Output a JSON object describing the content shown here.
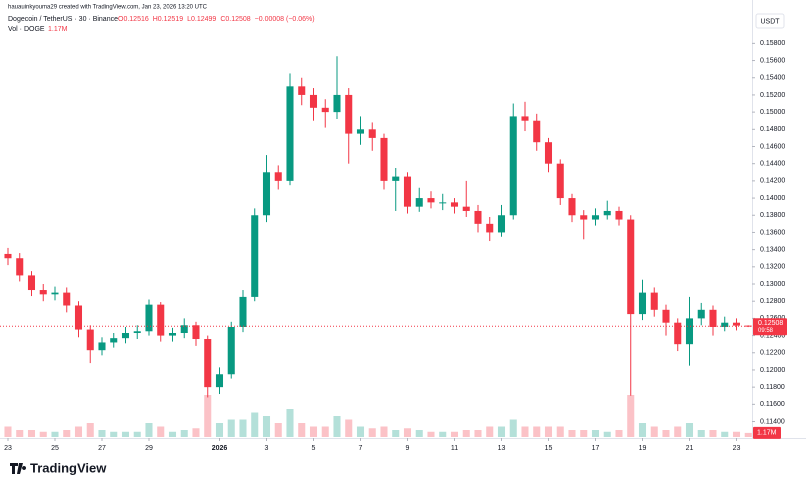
{
  "attribution": "hauauinkyouma29 created with TradingView.com, Jan 23, 2026 13:20 UTC",
  "footer": "TradingView",
  "chart_data": {
    "type": "candlestick",
    "title": "Dogecoin / TetherUS · 30 · Binance",
    "ohlc_legend": [
      "O0.12516",
      "H0.12519",
      "L0.12499",
      "C0.12508",
      "−0.00008 (−0.06%)"
    ],
    "volume_title": "Vol · DOGE",
    "volume_legend": "1.17M",
    "y_unit": "USDT",
    "countdown": "09:58",
    "up_color": "#089981",
    "down_color": "#f23645",
    "x": [
      0,
      0.5,
      1,
      1.5,
      2,
      2.5,
      3,
      3.5,
      4,
      4.5,
      5,
      5.5,
      6,
      6.5,
      7,
      7.5,
      8,
      8.5,
      9,
      9.5,
      10,
      10.5,
      11,
      11.5,
      12,
      12.5,
      13,
      13.5,
      14,
      14.5,
      15,
      15.5,
      16,
      16.5,
      17,
      17.5,
      18,
      18.5,
      19,
      19.5,
      20,
      20.5,
      21,
      21.5,
      22,
      22.5,
      23,
      23.5,
      24,
      24.5,
      25,
      25.5,
      26,
      26.5,
      27,
      27.5,
      28,
      28.5,
      29,
      29.5,
      30,
      30.5,
      31,
      31.5
    ],
    "open": [
      0.1335,
      0.133,
      0.131,
      0.1293,
      0.1288,
      0.129,
      0.1275,
      0.1247,
      0.1223,
      0.1232,
      0.1237,
      0.1243,
      0.1245,
      0.1276,
      0.124,
      0.1243,
      0.1252,
      0.1236,
      0.118,
      0.1195,
      0.125,
      0.1285,
      0.138,
      0.143,
      0.142,
      0.153,
      0.152,
      0.1505,
      0.15,
      0.152,
      0.1475,
      0.148,
      0.147,
      0.142,
      0.1425,
      0.139,
      0.14,
      0.1395,
      0.1395,
      0.139,
      0.1385,
      0.137,
      0.136,
      0.138,
      0.1495,
      0.149,
      0.1465,
      0.144,
      0.14,
      0.138,
      0.1375,
      0.138,
      0.1385,
      0.1375,
      0.1265,
      0.129,
      0.127,
      0.1255,
      0.123,
      0.126,
      0.127,
      0.125,
      0.1255,
      0.12516
    ],
    "high": [
      0.1342,
      0.1336,
      0.1315,
      0.13,
      0.1297,
      0.1296,
      0.128,
      0.1252,
      0.1238,
      0.1243,
      0.125,
      0.1252,
      0.1282,
      0.1279,
      0.1249,
      0.126,
      0.1256,
      0.124,
      0.1203,
      0.1256,
      0.1293,
      0.1388,
      0.145,
      0.1438,
      0.1545,
      0.154,
      0.1528,
      0.1515,
      0.1565,
      0.1528,
      0.1495,
      0.1488,
      0.1475,
      0.1435,
      0.143,
      0.1412,
      0.1408,
      0.1405,
      0.14,
      0.142,
      0.1392,
      0.1378,
      0.1392,
      0.151,
      0.1512,
      0.1498,
      0.147,
      0.1445,
      0.1405,
      0.1386,
      0.1388,
      0.1397,
      0.139,
      0.138,
      0.1305,
      0.1296,
      0.1276,
      0.126,
      0.1285,
      0.1278,
      0.1275,
      0.1262,
      0.126,
      0.12519
    ],
    "low": [
      0.1322,
      0.1303,
      0.1286,
      0.128,
      0.1281,
      0.1267,
      0.1238,
      0.1208,
      0.1217,
      0.1226,
      0.1231,
      0.1236,
      0.124,
      0.1233,
      0.1233,
      0.1237,
      0.1228,
      0.1168,
      0.1172,
      0.119,
      0.1244,
      0.128,
      0.1372,
      0.141,
      0.1415,
      0.1508,
      0.149,
      0.1482,
      0.1492,
      0.144,
      0.1462,
      0.1455,
      0.141,
      0.1385,
      0.1382,
      0.1384,
      0.1388,
      0.1386,
      0.1382,
      0.1378,
      0.136,
      0.135,
      0.1355,
      0.1375,
      0.1478,
      0.1455,
      0.143,
      0.1392,
      0.1372,
      0.1352,
      0.1368,
      0.1375,
      0.1368,
      0.117,
      0.1258,
      0.1262,
      0.124,
      0.1222,
      0.1205,
      0.1252,
      0.124,
      0.1245,
      0.1246,
      0.12499
    ],
    "close": [
      0.133,
      0.131,
      0.1293,
      0.1288,
      0.129,
      0.1275,
      0.1247,
      0.1223,
      0.1232,
      0.1237,
      0.1243,
      0.1245,
      0.1276,
      0.124,
      0.1243,
      0.1252,
      0.1236,
      0.118,
      0.1195,
      0.125,
      0.1285,
      0.138,
      0.143,
      0.142,
      0.153,
      0.152,
      0.1505,
      0.15,
      0.152,
      0.1475,
      0.148,
      0.147,
      0.142,
      0.1425,
      0.139,
      0.14,
      0.1395,
      0.1395,
      0.139,
      0.1385,
      0.137,
      0.136,
      0.138,
      0.1495,
      0.149,
      0.1465,
      0.144,
      0.14,
      0.138,
      0.1375,
      0.138,
      0.1385,
      0.1375,
      0.1265,
      0.129,
      0.127,
      0.1255,
      0.123,
      0.126,
      0.127,
      0.125,
      0.1255,
      0.12516,
      0.12508
    ],
    "volume": [
      3,
      2,
      2,
      1.5,
      1.5,
      2,
      3,
      4,
      2,
      1.5,
      1.5,
      1.5,
      4,
      3,
      1.5,
      2,
      2.5,
      12,
      4,
      5,
      5,
      7,
      6,
      4,
      8,
      4,
      3,
      3,
      6,
      5,
      3,
      2.5,
      3,
      2,
      2.5,
      2,
      1.5,
      1.5,
      1.5,
      2,
      2,
      3,
      3,
      5,
      3,
      3,
      3,
      3,
      2,
      2,
      2,
      1.5,
      2,
      12,
      4,
      3,
      2,
      3,
      4,
      2,
      2,
      1.5,
      1.5,
      1.17
    ],
    "vlim": [
      0,
      20
    ],
    "xlim": [
      -0.34,
      31.66
    ],
    "ylim": [
      0.1122,
      0.1613
    ],
    "xticks": [
      {
        "value": 0,
        "label": "23"
      },
      {
        "value": 2,
        "label": "25"
      },
      {
        "value": 4,
        "label": "27"
      },
      {
        "value": 6,
        "label": "29"
      },
      {
        "value": 9,
        "label": "2026"
      },
      {
        "value": 11,
        "label": "3"
      },
      {
        "value": 13,
        "label": "5"
      },
      {
        "value": 15,
        "label": "7"
      },
      {
        "value": 17,
        "label": "9"
      },
      {
        "value": 19,
        "label": "11"
      },
      {
        "value": 21,
        "label": "13"
      },
      {
        "value": 23,
        "label": "15"
      },
      {
        "value": 25,
        "label": "17"
      },
      {
        "value": 27,
        "label": "19"
      },
      {
        "value": 29,
        "label": "21"
      },
      {
        "value": 31,
        "label": "23"
      }
    ],
    "yticks": [
      {
        "value": 0.114,
        "label": "0.11400"
      },
      {
        "value": 0.116,
        "label": "0.11600"
      },
      {
        "value": 0.118,
        "label": "0.11800"
      },
      {
        "value": 0.12,
        "label": "0.12000"
      },
      {
        "value": 0.122,
        "label": "0.12200"
      },
      {
        "value": 0.124,
        "label": "0.12400"
      },
      {
        "value": 0.126,
        "label": "0.12600"
      },
      {
        "value": 0.128,
        "label": "0.12800"
      },
      {
        "value": 0.13,
        "label": "0.13000"
      },
      {
        "value": 0.132,
        "label": "0.13200"
      },
      {
        "value": 0.134,
        "label": "0.13400"
      },
      {
        "value": 0.136,
        "label": "0.13600"
      },
      {
        "value": 0.138,
        "label": "0.13800"
      },
      {
        "value": 0.14,
        "label": "0.14000"
      },
      {
        "value": 0.142,
        "label": "0.14200"
      },
      {
        "value": 0.144,
        "label": "0.14400"
      },
      {
        "value": 0.146,
        "label": "0.14600"
      },
      {
        "value": 0.148,
        "label": "0.14800"
      },
      {
        "value": 0.15,
        "label": "0.15000"
      },
      {
        "value": 0.152,
        "label": "0.15200"
      },
      {
        "value": 0.154,
        "label": "0.15400"
      },
      {
        "value": 0.156,
        "label": "0.15600"
      },
      {
        "value": 0.158,
        "label": "0.15800"
      }
    ]
  }
}
